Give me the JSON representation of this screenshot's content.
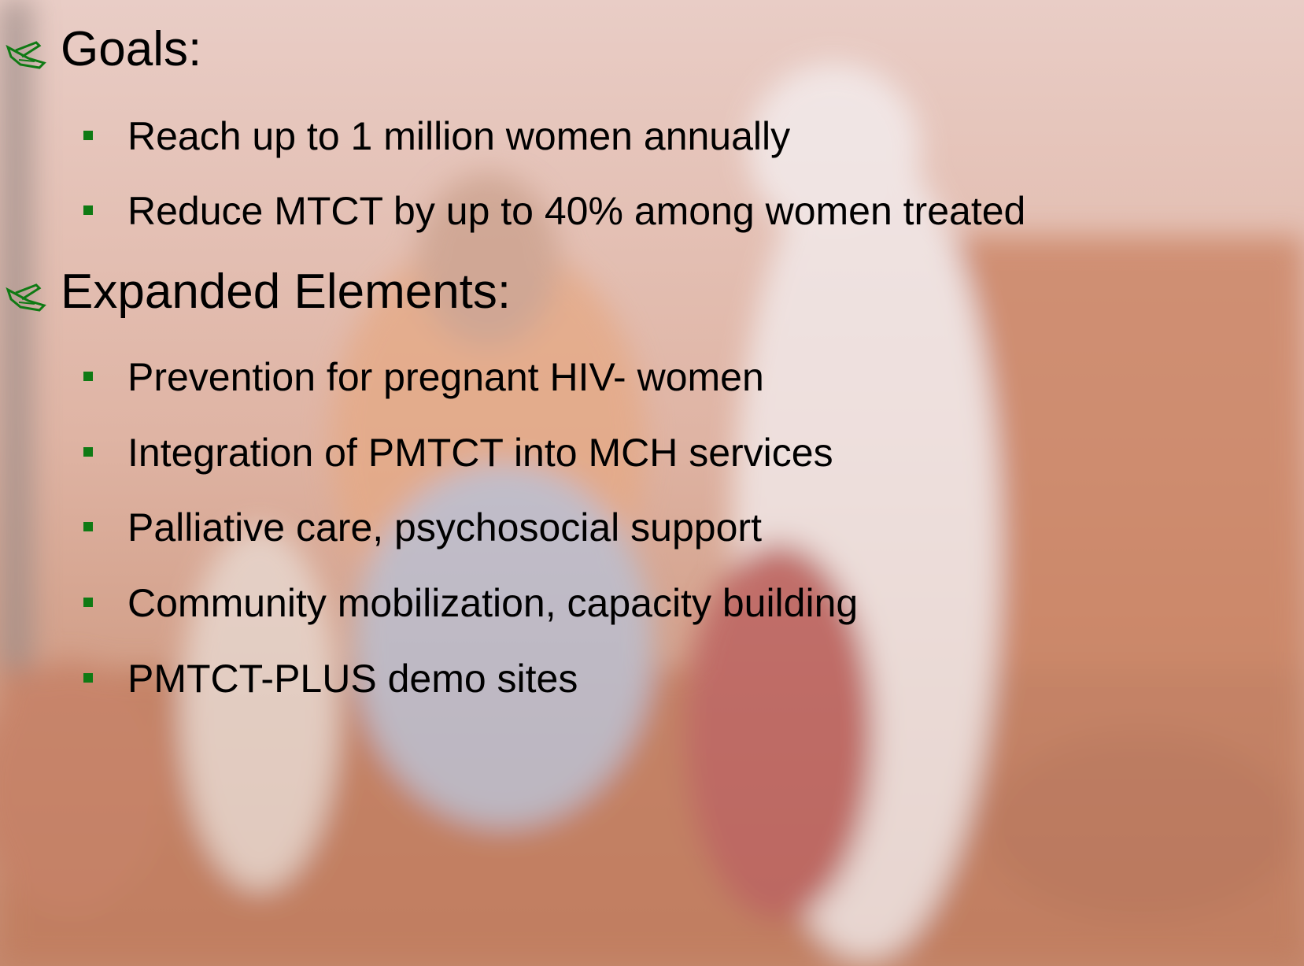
{
  "sections": [
    {
      "heading": "Goals:",
      "items": [
        "Reach up to 1 million women annually",
        "Reduce MTCT by up to 40% among women treated"
      ]
    },
    {
      "heading": "Expanded Elements:",
      "items": [
        "Prevention for pregnant HIV- women",
        "Integration of PMTCT into MCH services",
        "Palliative care, psychosocial support",
        "Community mobilization, capacity building",
        "PMTCT-PLUS demo sites"
      ]
    }
  ]
}
